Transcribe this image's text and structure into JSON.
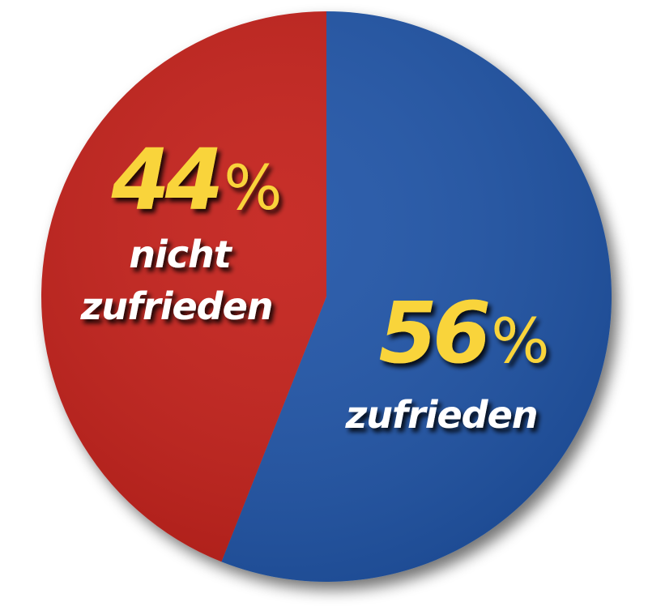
{
  "chart_data": {
    "type": "pie",
    "slices": [
      {
        "key": "satisfied",
        "value": 56,
        "value_label": "56",
        "percent_sign": "%",
        "label_lines": [
          "zufrieden"
        ],
        "color": "#2057a8"
      },
      {
        "key": "not-satisfied",
        "value": 44,
        "value_label": "44",
        "percent_sign": "%",
        "label_lines": [
          "nicht",
          "zufrieden"
        ],
        "color": "#c4241f"
      }
    ],
    "value_text_color": "#f9d43a",
    "label_text_color": "#ffffff"
  }
}
